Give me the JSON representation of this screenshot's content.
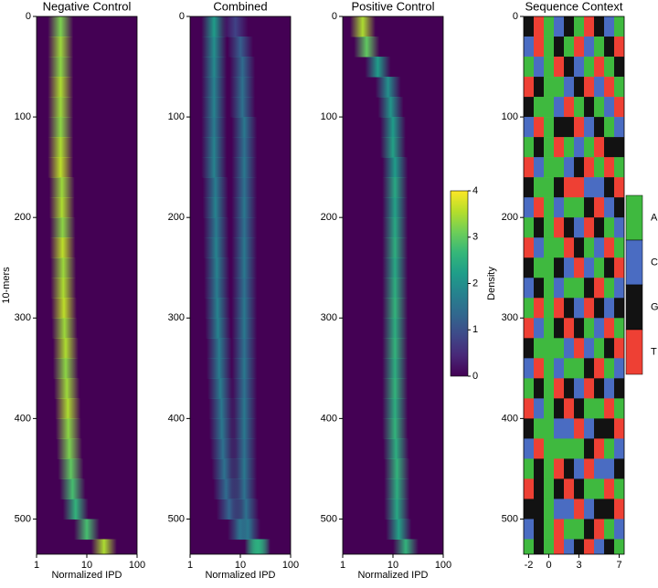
{
  "chart_data": [
    {
      "type": "density-heatmap",
      "title": "Negative Control",
      "xlabel": "Normalized IPD",
      "ylabel": "10-mers",
      "xlim": [
        1,
        100
      ],
      "xticks": [
        1,
        10,
        100
      ],
      "log_x": true,
      "ylim": [
        0,
        535
      ],
      "yticks": [
        0,
        100,
        200,
        300,
        400,
        500
      ],
      "y_reversed": true,
      "row_starts": [
        0,
        20,
        40,
        60,
        80,
        100,
        120,
        140,
        160,
        180,
        200,
        220,
        240,
        260,
        280,
        300,
        320,
        340,
        360,
        380,
        400,
        420,
        440,
        460,
        480,
        500,
        520
      ],
      "peaks": [
        {
          "ipd": [
            3,
            3,
            3,
            3,
            3,
            3,
            3,
            3,
            3.2,
            3.2,
            3.3,
            3.3,
            3.4,
            3.4,
            3.5,
            3.6,
            3.8,
            3.8,
            4,
            4.2,
            4.3,
            4.5,
            4.8,
            5.2,
            6,
            10,
            22
          ],
          "density": [
            3.2,
            3.4,
            3.3,
            3.5,
            3.4,
            3.3,
            3.5,
            3.6,
            3.4,
            3.5,
            3.3,
            3.6,
            3.4,
            3.5,
            3.6,
            3.4,
            3.5,
            3.3,
            3.4,
            3.5,
            3.3,
            3.2,
            3.0,
            2.8,
            2.6,
            2.8,
            3.5
          ]
        }
      ]
    },
    {
      "type": "density-heatmap",
      "title": "Combined",
      "xlabel": "Normalized IPD",
      "xlim": [
        1,
        100
      ],
      "xticks": [
        1,
        10,
        100
      ],
      "log_x": true,
      "ylim": [
        0,
        535
      ],
      "yticks": [
        0,
        100,
        200,
        300,
        400,
        500
      ],
      "y_reversed": true,
      "row_starts": [
        0,
        20,
        40,
        60,
        80,
        100,
        120,
        140,
        160,
        180,
        200,
        220,
        240,
        260,
        280,
        300,
        320,
        340,
        360,
        380,
        400,
        420,
        440,
        460,
        480,
        500,
        520
      ],
      "peaks": [
        {
          "ipd": [
            3,
            3,
            3,
            3,
            3,
            3,
            3,
            3,
            3.2,
            3.2,
            3.3,
            3.3,
            3.4,
            3.4,
            3.5,
            3.6,
            3.8,
            3.8,
            4,
            4.2,
            4.3,
            4.5,
            4.8,
            5.2,
            6,
            10,
            22
          ],
          "density": [
            2.2,
            2.0,
            1.9,
            1.8,
            1.8,
            1.7,
            1.8,
            1.8,
            1.7,
            1.8,
            1.7,
            1.8,
            1.8,
            1.7,
            1.8,
            1.8,
            1.7,
            1.7,
            1.7,
            1.6,
            1.6,
            1.5,
            1.5,
            1.4,
            1.3,
            1.5,
            2.5
          ]
        },
        {
          "ipd": [
            8,
            10,
            11,
            11,
            11,
            12,
            12,
            12,
            12,
            12,
            12,
            12,
            12,
            12,
            12,
            12,
            12,
            12,
            12,
            12,
            12,
            12,
            12,
            12,
            13,
            14,
            22
          ],
          "density": [
            0.8,
            1.2,
            1.4,
            1.5,
            1.5,
            1.6,
            1.5,
            1.6,
            1.5,
            1.6,
            1.5,
            1.6,
            1.6,
            1.5,
            1.6,
            1.6,
            1.5,
            1.6,
            1.5,
            1.6,
            1.6,
            1.5,
            1.6,
            1.5,
            1.5,
            1.6,
            2.5
          ]
        }
      ]
    },
    {
      "type": "density-heatmap",
      "title": "Positive Control",
      "xlabel": "Normalized IPD",
      "xlim": [
        1,
        100
      ],
      "xticks": [
        1,
        10,
        100
      ],
      "log_x": true,
      "ylim": [
        0,
        535
      ],
      "yticks": [
        0,
        100,
        200,
        300,
        400,
        500
      ],
      "y_reversed": true,
      "row_starts": [
        0,
        20,
        40,
        60,
        80,
        100,
        120,
        140,
        160,
        180,
        200,
        220,
        240,
        260,
        280,
        300,
        320,
        340,
        360,
        380,
        400,
        420,
        440,
        460,
        480,
        500,
        520
      ],
      "peaks": [
        {
          "ipd": [
            2.5,
            3,
            5,
            8,
            9,
            10,
            10,
            11,
            11,
            11,
            11,
            11,
            11,
            11,
            11,
            11,
            11,
            11,
            11,
            11,
            11,
            11.5,
            12,
            12,
            12,
            13,
            18
          ],
          "density": [
            3.5,
            3.0,
            2.2,
            2.0,
            2.1,
            2.2,
            2.3,
            2.2,
            2.4,
            2.3,
            2.4,
            2.5,
            2.4,
            2.5,
            2.6,
            2.5,
            2.6,
            2.5,
            2.6,
            2.5,
            2.6,
            2.5,
            2.6,
            2.5,
            2.4,
            2.3,
            2.6
          ]
        }
      ]
    },
    {
      "type": "sequence",
      "title": "Sequence Context",
      "xlim": [
        -2.5,
        7.5
      ],
      "xticks": [
        -2,
        0,
        3,
        7
      ],
      "positions": [
        -2,
        -1,
        0,
        1,
        2,
        3,
        4,
        5,
        6,
        7
      ],
      "ylim": [
        0,
        535
      ],
      "yticks": [
        0,
        100,
        200,
        300,
        400,
        500
      ],
      "y_reversed": true,
      "row_starts": [
        0,
        20,
        40,
        60,
        80,
        100,
        120,
        140,
        160,
        180,
        200,
        220,
        240,
        260,
        280,
        300,
        320,
        340,
        360,
        380,
        400,
        420,
        440,
        460,
        480,
        500,
        520
      ],
      "matrix": [
        [
          "G",
          "T",
          "A",
          "C",
          "G",
          "A",
          "T",
          "G",
          "C",
          "A"
        ],
        [
          "C",
          "T",
          "A",
          "G",
          "A",
          "T",
          "C",
          "A",
          "G",
          "T"
        ],
        [
          "A",
          "C",
          "A",
          "T",
          "G",
          "C",
          "A",
          "T",
          "A",
          "G"
        ],
        [
          "T",
          "G",
          "A",
          "A",
          "C",
          "G",
          "T",
          "C",
          "T",
          "A"
        ],
        [
          "G",
          "A",
          "A",
          "C",
          "T",
          "A",
          "G",
          "A",
          "C",
          "T"
        ],
        [
          "C",
          "T",
          "A",
          "G",
          "G",
          "T",
          "C",
          "G",
          "A",
          "C"
        ],
        [
          "A",
          "G",
          "A",
          "T",
          "A",
          "C",
          "A",
          "T",
          "G",
          "G"
        ],
        [
          "T",
          "C",
          "A",
          "A",
          "C",
          "G",
          "T",
          "A",
          "T",
          "A"
        ],
        [
          "G",
          "A",
          "A",
          "G",
          "T",
          "T",
          "C",
          "C",
          "G",
          "T"
        ],
        [
          "C",
          "T",
          "A",
          "C",
          "A",
          "A",
          "G",
          "T",
          "C",
          "G"
        ],
        [
          "A",
          "G",
          "A",
          "T",
          "G",
          "C",
          "T",
          "G",
          "A",
          "C"
        ],
        [
          "T",
          "C",
          "A",
          "A",
          "T",
          "G",
          "A",
          "C",
          "T",
          "A"
        ],
        [
          "G",
          "A",
          "A",
          "G",
          "C",
          "T",
          "C",
          "A",
          "G",
          "T"
        ],
        [
          "C",
          "G",
          "A",
          "C",
          "A",
          "A",
          "G",
          "T",
          "A",
          "C"
        ],
        [
          "A",
          "T",
          "A",
          "T",
          "G",
          "C",
          "T",
          "G",
          "C",
          "G"
        ],
        [
          "T",
          "C",
          "A",
          "G",
          "T",
          "G",
          "A",
          "C",
          "T",
          "A"
        ],
        [
          "G",
          "A",
          "A",
          "A",
          "C",
          "T",
          "C",
          "A",
          "G",
          "T"
        ],
        [
          "C",
          "T",
          "A",
          "C",
          "A",
          "A",
          "G",
          "T",
          "A",
          "C"
        ],
        [
          "A",
          "G",
          "A",
          "T",
          "G",
          "C",
          "T",
          "G",
          "C",
          "G"
        ],
        [
          "T",
          "C",
          "A",
          "G",
          "T",
          "G",
          "A",
          "A",
          "T",
          "A"
        ],
        [
          "G",
          "A",
          "A",
          "C",
          "C",
          "T",
          "C",
          "G",
          "G",
          "T"
        ],
        [
          "C",
          "T",
          "A",
          "A",
          "A",
          "A",
          "G",
          "T",
          "A",
          "C"
        ],
        [
          "A",
          "G",
          "A",
          "T",
          "G",
          "C",
          "T",
          "C",
          "C",
          "G"
        ],
        [
          "T",
          "G",
          "A",
          "G",
          "T",
          "G",
          "A",
          "A",
          "T",
          "A"
        ],
        [
          "G",
          "G",
          "A",
          "C",
          "C",
          "T",
          "C",
          "G",
          "G",
          "T"
        ],
        [
          "C",
          "G",
          "A",
          "T",
          "A",
          "A",
          "G",
          "T",
          "A",
          "C"
        ],
        [
          "A",
          "G",
          "A",
          "T",
          "C",
          "G",
          "T",
          "C",
          "G",
          "A"
        ]
      ],
      "legend": {
        "categories": [
          "A",
          "C",
          "G",
          "T"
        ],
        "colors": [
          "#3fb93f",
          "#4a6cc2",
          "#121212",
          "#ee4034"
        ]
      }
    }
  ],
  "colorbar": {
    "label": "Density",
    "lim": [
      0,
      4
    ],
    "ticks": [
      0,
      1,
      2,
      3,
      4
    ],
    "colormap": [
      "#440154",
      "#482878",
      "#3e4989",
      "#31688e",
      "#26828e",
      "#1f9e89",
      "#35b779",
      "#6ece58",
      "#b5de2b",
      "#fde725"
    ]
  }
}
